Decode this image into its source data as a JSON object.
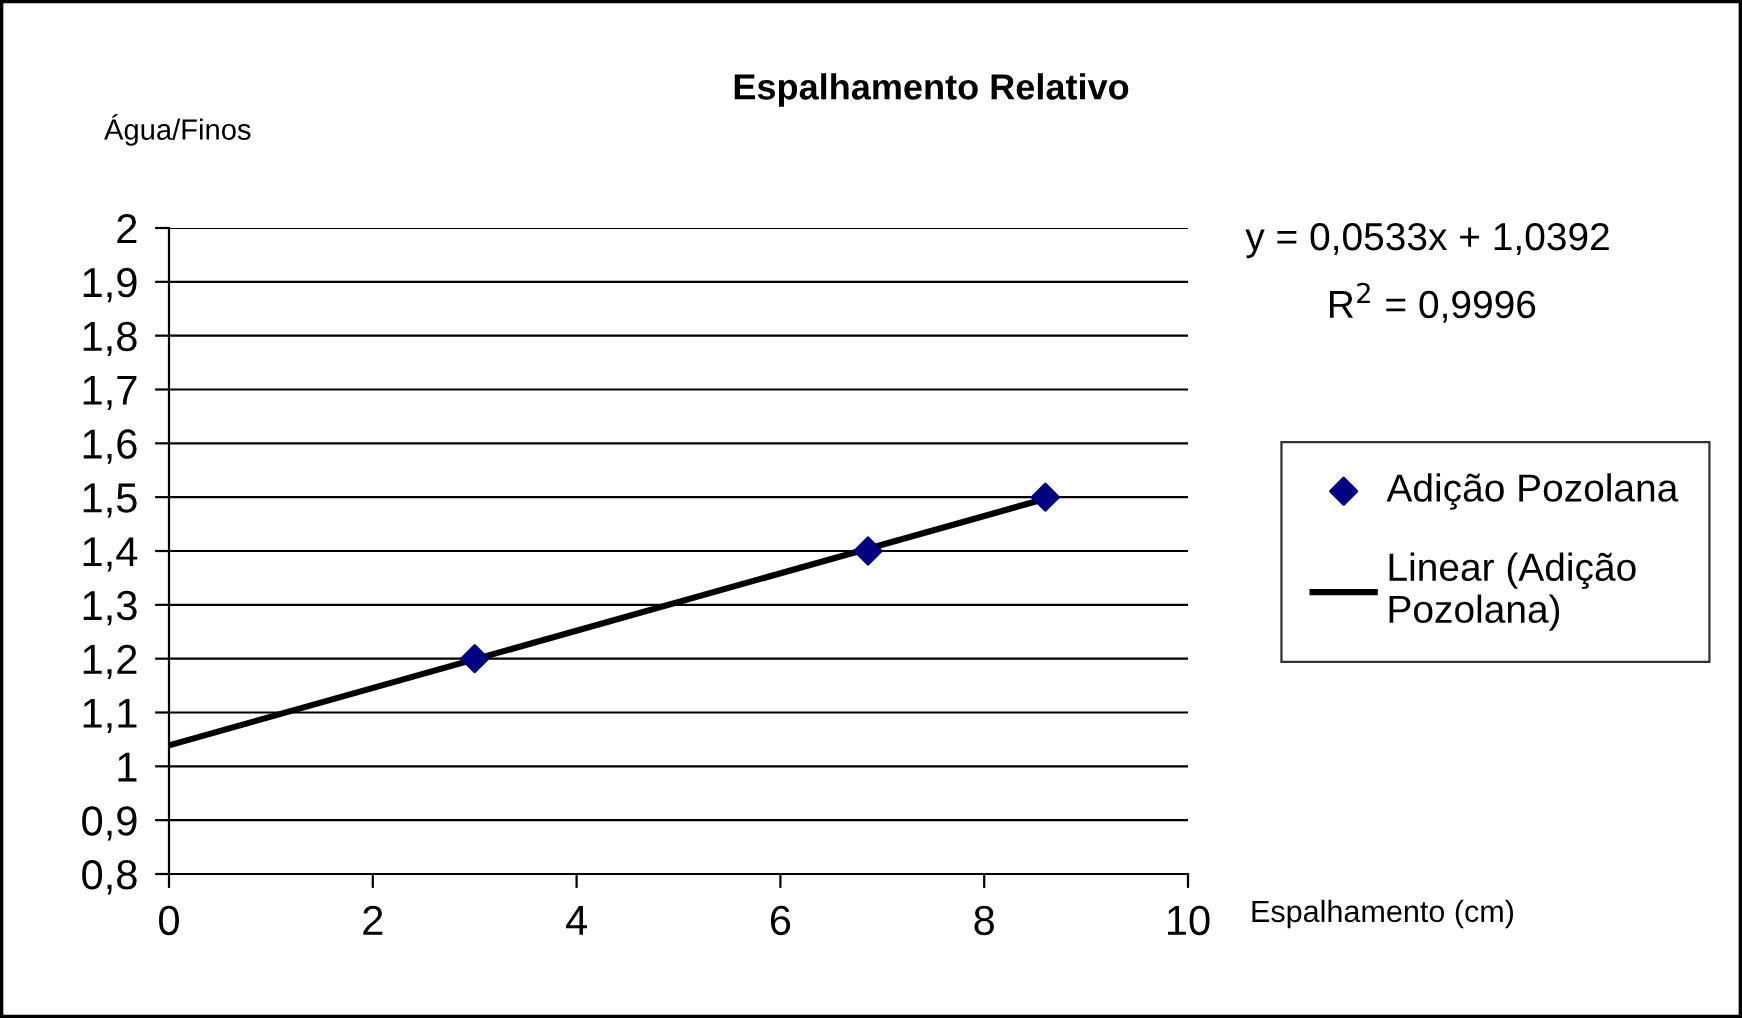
{
  "chart_data": {
    "type": "scatter",
    "title": "Espalhamento Relativo",
    "xlabel": "Espalhamento (cm)",
    "ylabel": "Água/Finos",
    "series": [
      {
        "name": "Adição Pozolana",
        "color": "#000080",
        "marker": "diamond",
        "x": [
          3,
          6.86,
          8.6
        ],
        "values": [
          1.2,
          1.4,
          1.5
        ]
      },
      {
        "name": "Linear (Adição\nPozolana)",
        "type": "line",
        "color": "#000000",
        "line_style": "solid",
        "x": [
          0,
          8.6
        ],
        "values": [
          1.039,
          1.497
        ]
      }
    ],
    "xlim": [
      0,
      10
    ],
    "xticks": [
      0,
      2,
      4,
      6,
      8,
      10
    ],
    "ylim": [
      0.8,
      2
    ],
    "yticks": [
      {
        "value": 0.8,
        "label": "0,8"
      },
      {
        "value": 0.9,
        "label": "0,9"
      },
      1,
      {
        "value": 1.1,
        "label": "1,1"
      },
      {
        "value": 1.2,
        "label": "1,2"
      },
      {
        "value": 1.3,
        "label": "1,3"
      },
      {
        "value": 1.4,
        "label": "1,4"
      },
      {
        "value": 1.5,
        "label": "1,5"
      },
      {
        "value": 1.6,
        "label": "1,6"
      },
      {
        "value": 1.7,
        "label": "1,7"
      },
      {
        "value": 1.8,
        "label": "1,8"
      },
      {
        "value": 1.9,
        "label": "1,9"
      },
      2
    ],
    "grid": "y",
    "legend": "right",
    "annotations": [
      "y = 0,0533x + 1,0392",
      "R$^{2}$ = 0,9996"
    ]
  }
}
